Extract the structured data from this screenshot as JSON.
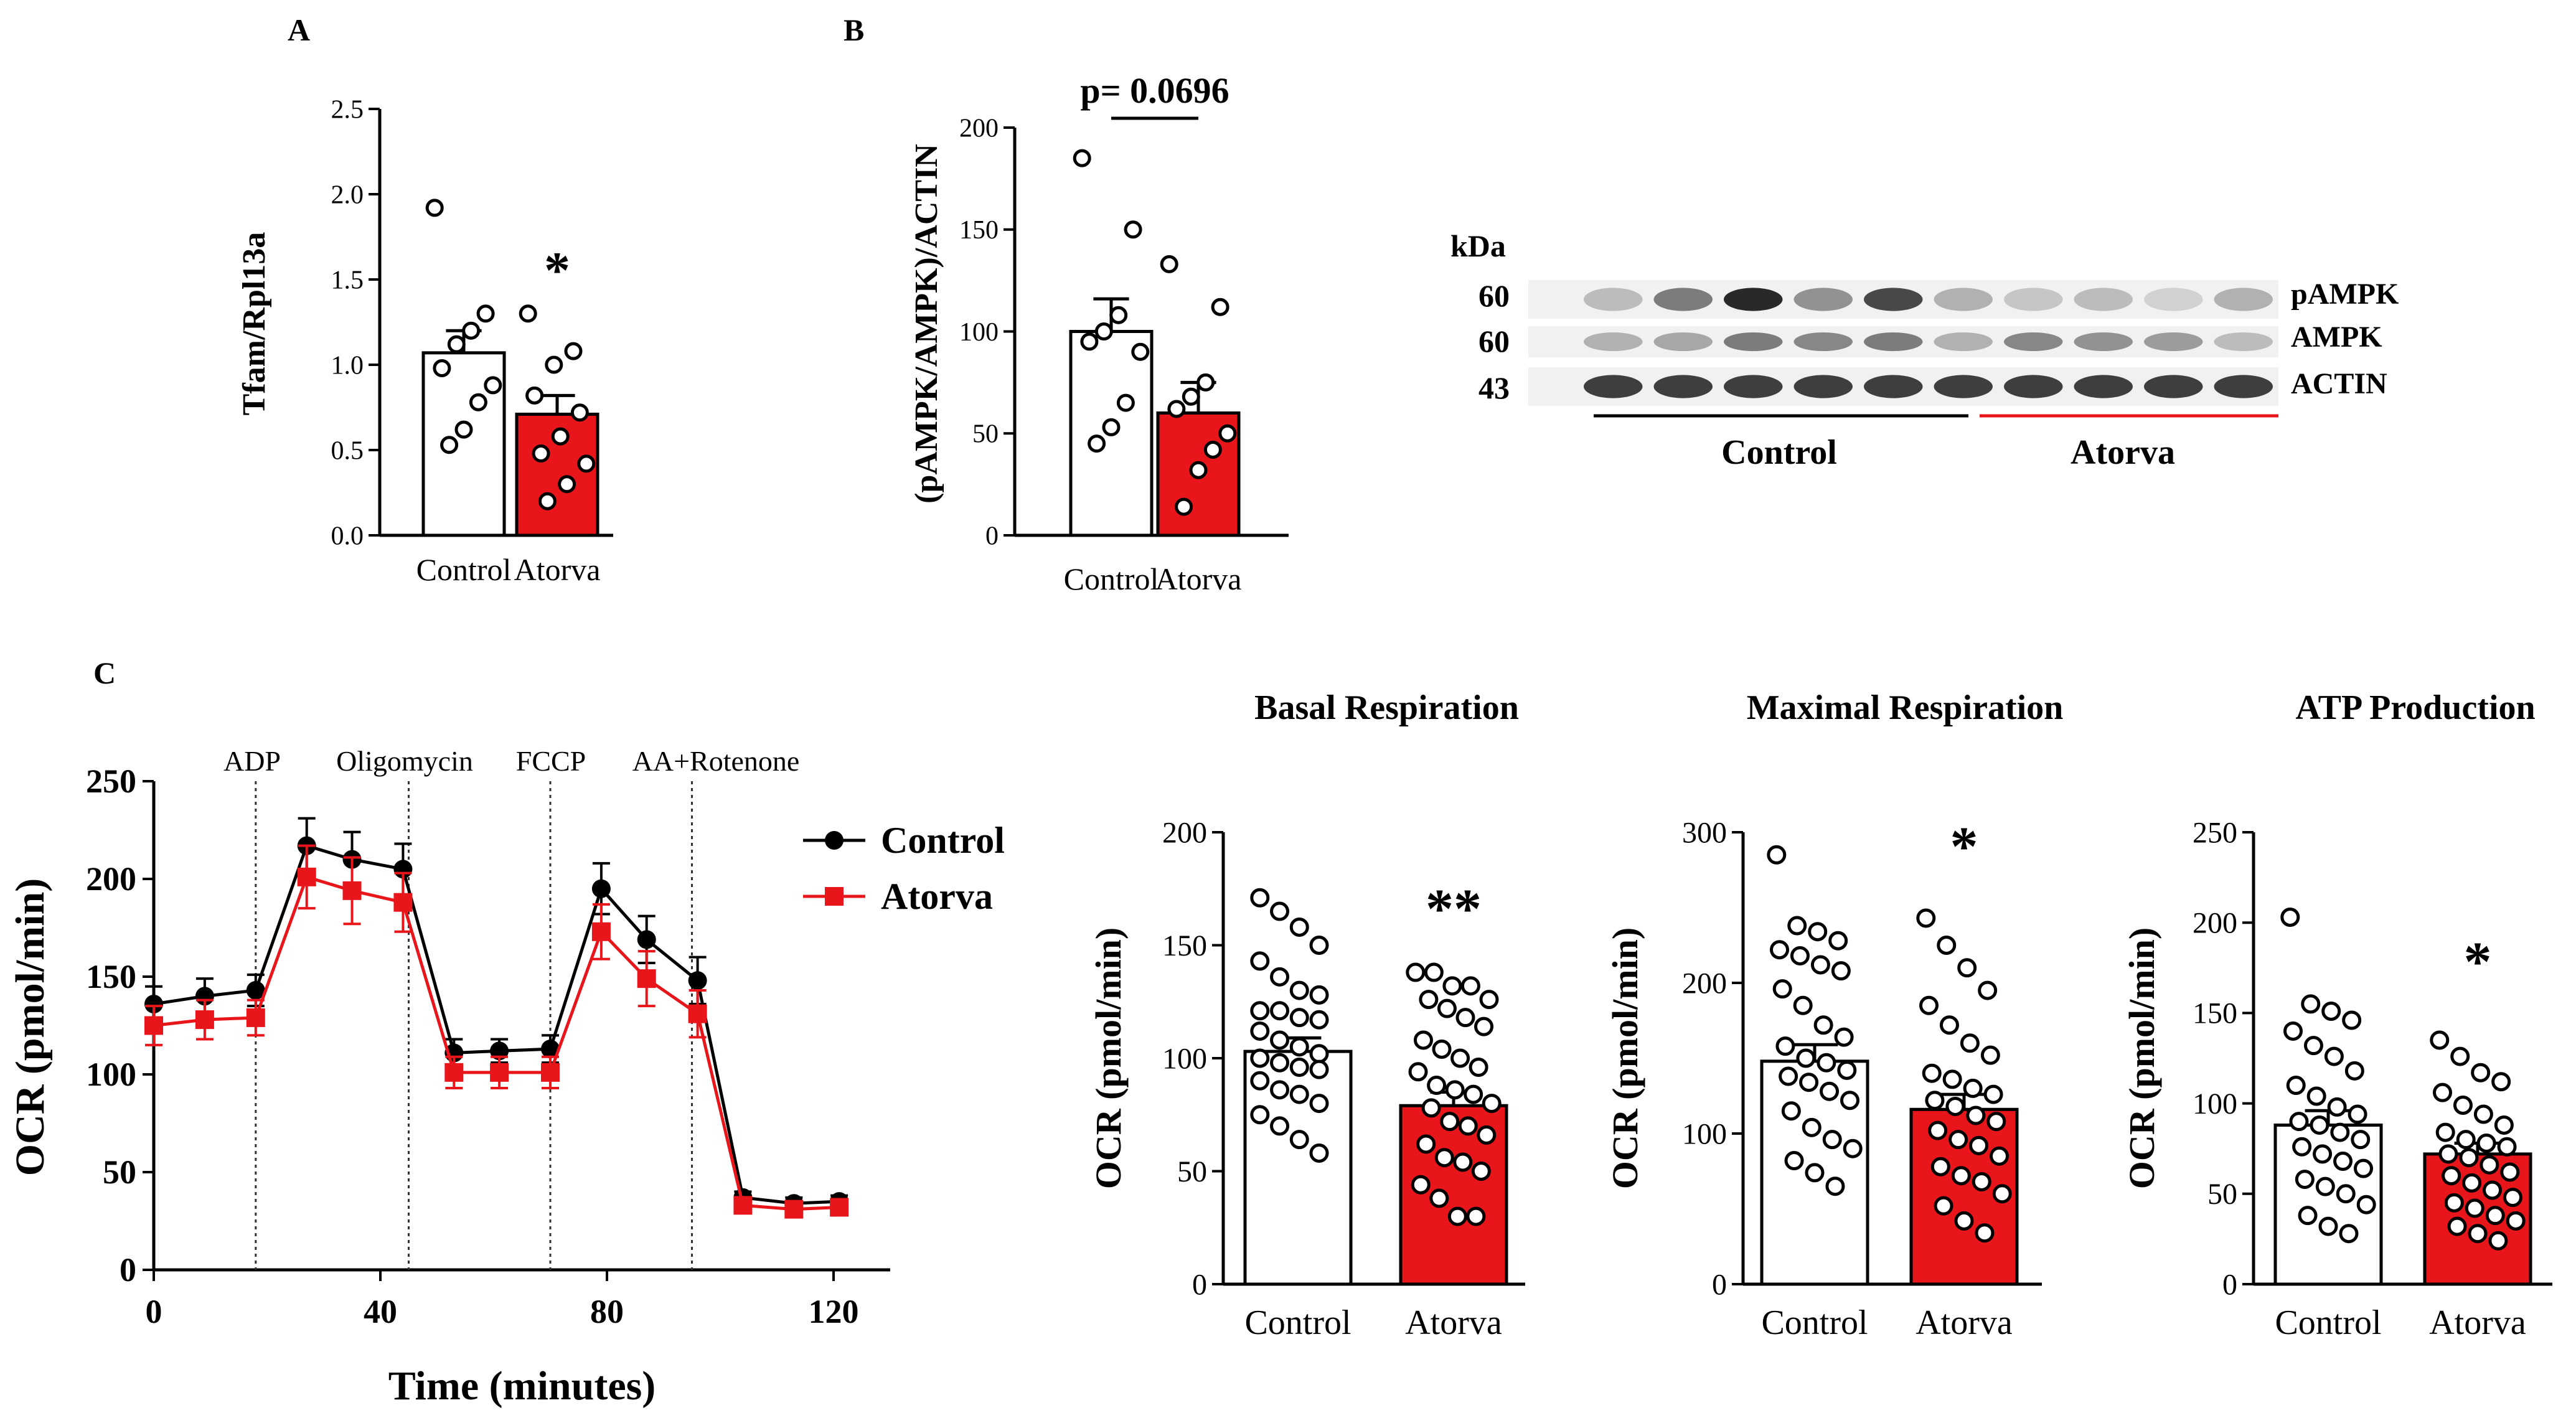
{
  "panels": {
    "A": "A",
    "B": "B",
    "C": "C"
  },
  "colors": {
    "control": "#000000",
    "atorva": "#e8161b",
    "bar_edge": "#000000"
  },
  "western_blot": {
    "kda_label": "kDa",
    "row_labels": [
      "pAMPK",
      "AMPK",
      "ACTIN"
    ],
    "kda_values": [
      "60",
      "60",
      "43"
    ],
    "group_labels": [
      "Control",
      "Atorva"
    ],
    "band_intensity": {
      "pAMPK": [
        0.25,
        0.55,
        0.95,
        0.45,
        0.8,
        0.3,
        0.2,
        0.25,
        0.15,
        0.3
      ],
      "AMPK": [
        0.3,
        0.35,
        0.55,
        0.5,
        0.55,
        0.3,
        0.5,
        0.45,
        0.4,
        0.25
      ],
      "ACTIN": [
        0.85,
        0.85,
        0.85,
        0.85,
        0.85,
        0.85,
        0.85,
        0.85,
        0.85,
        0.85
      ]
    }
  },
  "chart_data": [
    {
      "id": "A",
      "type": "bar",
      "title": "",
      "xlabel": "",
      "ylabel": "Tfam/Rpl13a",
      "categories": [
        "Control",
        "Atorva"
      ],
      "values": [
        1.07,
        0.71
      ],
      "sem": [
        0.13,
        0.11
      ],
      "ylim": [
        0,
        2.5
      ],
      "yticks": [
        0.0,
        0.5,
        1.0,
        1.5,
        2.0,
        2.5
      ],
      "ytick_labels": [
        "0.0",
        "0.5",
        "1.0",
        "1.5",
        "2.0",
        "2.5"
      ],
      "points": [
        [
          1.92,
          1.3,
          1.2,
          1.12,
          0.98,
          0.88,
          0.78,
          0.62,
          0.53
        ],
        [
          1.3,
          1.08,
          1.0,
          0.82,
          0.72,
          0.58,
          0.48,
          0.42,
          0.3,
          0.2
        ]
      ],
      "annotation": "*"
    },
    {
      "id": "B",
      "type": "bar",
      "title": "",
      "xlabel": "",
      "ylabel": "(pAMPK/AMPK)/ACTIN",
      "categories": [
        "Control",
        "Atorva"
      ],
      "values": [
        100,
        60
      ],
      "sem": [
        16,
        15
      ],
      "ylim": [
        0,
        200
      ],
      "yticks": [
        0,
        50,
        100,
        150,
        200
      ],
      "ytick_labels": [
        "0",
        "50",
        "100",
        "150",
        "200"
      ],
      "points": [
        [
          185,
          150,
          108,
          100,
          95,
          90,
          65,
          53,
          45
        ],
        [
          133,
          112,
          75,
          68,
          62,
          50,
          42,
          32,
          14
        ]
      ],
      "annotation": "p= 0.0696"
    },
    {
      "id": "C",
      "type": "line",
      "title": "",
      "xlabel": "Time (minutes)",
      "ylabel": "OCR (pmol/min)",
      "xlim": [
        0,
        130
      ],
      "ylim": [
        0,
        250
      ],
      "xticks": [
        0,
        40,
        80,
        120
      ],
      "xtick_labels": [
        "0",
        "40",
        "80",
        "120"
      ],
      "yticks": [
        0,
        50,
        100,
        150,
        200,
        250
      ],
      "ytick_labels": [
        "0",
        "50",
        "100",
        "150",
        "200",
        "250"
      ],
      "x": [
        0,
        9,
        18,
        27,
        35,
        44,
        53,
        61,
        70,
        79,
        87,
        96,
        104,
        113,
        121
      ],
      "series": [
        {
          "name": "Control",
          "values": [
            136,
            140,
            143,
            217,
            210,
            205,
            111,
            112,
            113,
            195,
            169,
            148,
            37,
            34,
            35
          ],
          "err": [
            9,
            9,
            8,
            14,
            14,
            13,
            7,
            6,
            7,
            13,
            12,
            12,
            3,
            3,
            3
          ]
        },
        {
          "name": "Atorva",
          "values": [
            125,
            128,
            129,
            201,
            194,
            188,
            101,
            101,
            101,
            173,
            149,
            131,
            33,
            31,
            32
          ],
          "err": [
            10,
            10,
            9,
            16,
            17,
            15,
            8,
            8,
            8,
            14,
            14,
            12,
            3,
            3,
            3
          ]
        }
      ],
      "injections": [
        {
          "label": "ADP",
          "x": 18
        },
        {
          "label": "Oligomycin",
          "x": 45
        },
        {
          "label": "FCCP",
          "x": 70
        },
        {
          "label": "AA+Rotenone",
          "x": 95
        }
      ],
      "legend_position": "top-right"
    },
    {
      "id": "basal",
      "type": "bar",
      "title": "Basal Respiration",
      "xlabel": "",
      "ylabel": "OCR (pmol/min)",
      "categories": [
        "Control",
        "Atorva"
      ],
      "values": [
        103,
        79
      ],
      "sem": [
        6,
        6
      ],
      "ylim": [
        0,
        200
      ],
      "yticks": [
        0,
        50,
        100,
        150,
        200
      ],
      "ytick_labels": [
        "0",
        "50",
        "100",
        "150",
        "200"
      ],
      "points": [
        [
          171,
          165,
          158,
          150,
          143,
          136,
          130,
          128,
          121,
          121,
          118,
          117,
          112,
          108,
          105,
          102,
          100,
          98,
          96,
          95,
          90,
          86,
          84,
          80,
          75,
          70,
          64,
          58
        ],
        [
          138,
          138,
          132,
          132,
          126,
          126,
          122,
          118,
          114,
          108,
          104,
          100,
          96,
          94,
          88,
          86,
          84,
          80,
          78,
          72,
          70,
          66,
          62,
          56,
          54,
          50,
          44,
          38,
          30,
          30
        ]
      ],
      "annotation": "**"
    },
    {
      "id": "maximal",
      "type": "bar",
      "title": "Maximal Respiration",
      "xlabel": "",
      "ylabel": "OCR (pmol/min)",
      "categories": [
        "Control",
        "Atorva"
      ],
      "values": [
        148,
        116
      ],
      "sem": [
        11,
        10
      ],
      "ylim": [
        0,
        300
      ],
      "yticks": [
        0,
        100,
        200,
        300
      ],
      "ytick_labels": [
        "0",
        "100",
        "200",
        "300"
      ],
      "points": [
        [
          285,
          238,
          234,
          228,
          222,
          218,
          212,
          208,
          196,
          185,
          172,
          164,
          158,
          150,
          147,
          142,
          138,
          134,
          128,
          122,
          115,
          104,
          96,
          90,
          82,
          74,
          65
        ],
        [
          243,
          225,
          210,
          195,
          185,
          172,
          160,
          152,
          140,
          136,
          130,
          126,
          122,
          118,
          112,
          108,
          102,
          96,
          92,
          85,
          78,
          72,
          68,
          60,
          52,
          42,
          34
        ]
      ],
      "annotation": "*"
    },
    {
      "id": "atp",
      "type": "bar",
      "title": "ATP Production",
      "xlabel": "",
      "ylabel": "OCR (pmol/min)",
      "categories": [
        "Control",
        "Atorva"
      ],
      "values": [
        88,
        72
      ],
      "sem": [
        8,
        6
      ],
      "ylim": [
        0,
        250
      ],
      "yticks": [
        0,
        50,
        100,
        150,
        200,
        250
      ],
      "ytick_labels": [
        "0",
        "50",
        "100",
        "150",
        "200",
        "250"
      ],
      "points": [
        [
          203,
          155,
          151,
          146,
          140,
          132,
          126,
          118,
          110,
          104,
          98,
          94,
          90,
          88,
          84,
          80,
          76,
          72,
          68,
          64,
          58,
          54,
          50,
          44,
          38,
          32,
          28
        ],
        [
          135,
          126,
          117,
          112,
          106,
          99,
          94,
          88,
          84,
          80,
          78,
          76,
          72,
          70,
          66,
          62,
          60,
          56,
          52,
          48,
          45,
          42,
          38,
          35,
          32,
          28,
          24
        ]
      ],
      "annotation": "*"
    }
  ]
}
